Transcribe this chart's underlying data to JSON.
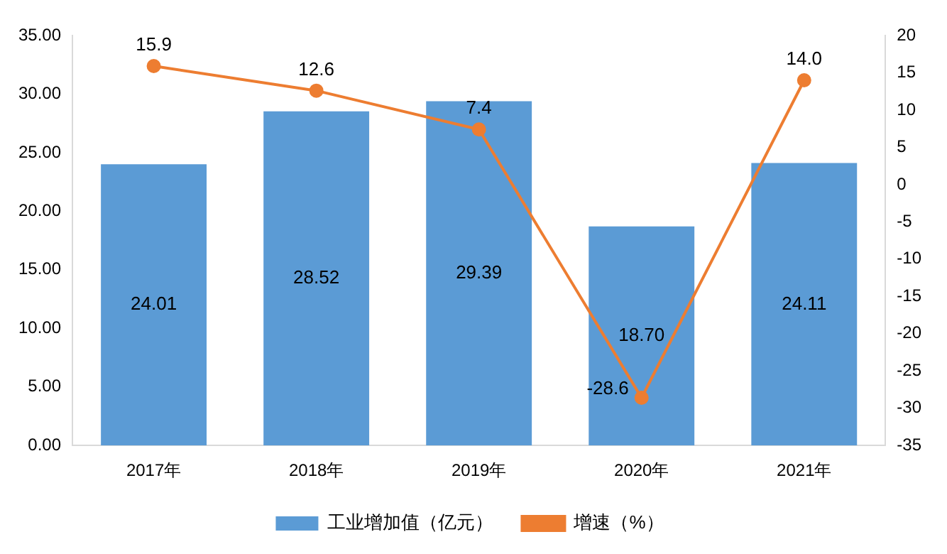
{
  "chart_data": {
    "type": "bar",
    "categories": [
      "2017年",
      "2018年",
      "2019年",
      "2020年",
      "2021年"
    ],
    "series": [
      {
        "name": "工业增加值（亿元）",
        "color": "#5b9bd5",
        "values": [
          24.01,
          28.52,
          29.39,
          18.7,
          24.11
        ],
        "value_labels": [
          "24.01",
          "28.52",
          "29.39",
          "18.70",
          "24.11"
        ]
      },
      {
        "name": "增速（%）",
        "type": "line",
        "axis": "y2",
        "color": "#ed7d31",
        "values": [
          15.9,
          12.6,
          7.4,
          -28.6,
          14.0
        ],
        "value_labels": [
          "15.9",
          "12.6",
          "7.4",
          "-28.6",
          "14.0"
        ]
      }
    ],
    "ylim": [
      0,
      35
    ],
    "yticks": [
      {
        "value": 0,
        "label": "0.00"
      },
      {
        "value": 5,
        "label": "5.00"
      },
      {
        "value": 10,
        "label": "10.00"
      },
      {
        "value": 15,
        "label": "15.00"
      },
      {
        "value": 20,
        "label": "20.00"
      },
      {
        "value": 25,
        "label": "25.00"
      },
      {
        "value": 30,
        "label": "30.00"
      },
      {
        "value": 35,
        "label": "35.00"
      }
    ],
    "y2lim": [
      -35,
      20
    ],
    "y2ticks": [
      -35,
      -30,
      -25,
      -20,
      -15,
      -10,
      -5,
      0,
      5,
      10,
      15,
      20
    ],
    "grid": false,
    "legend": "bottom",
    "marker": "circle",
    "line_style": "solid"
  }
}
